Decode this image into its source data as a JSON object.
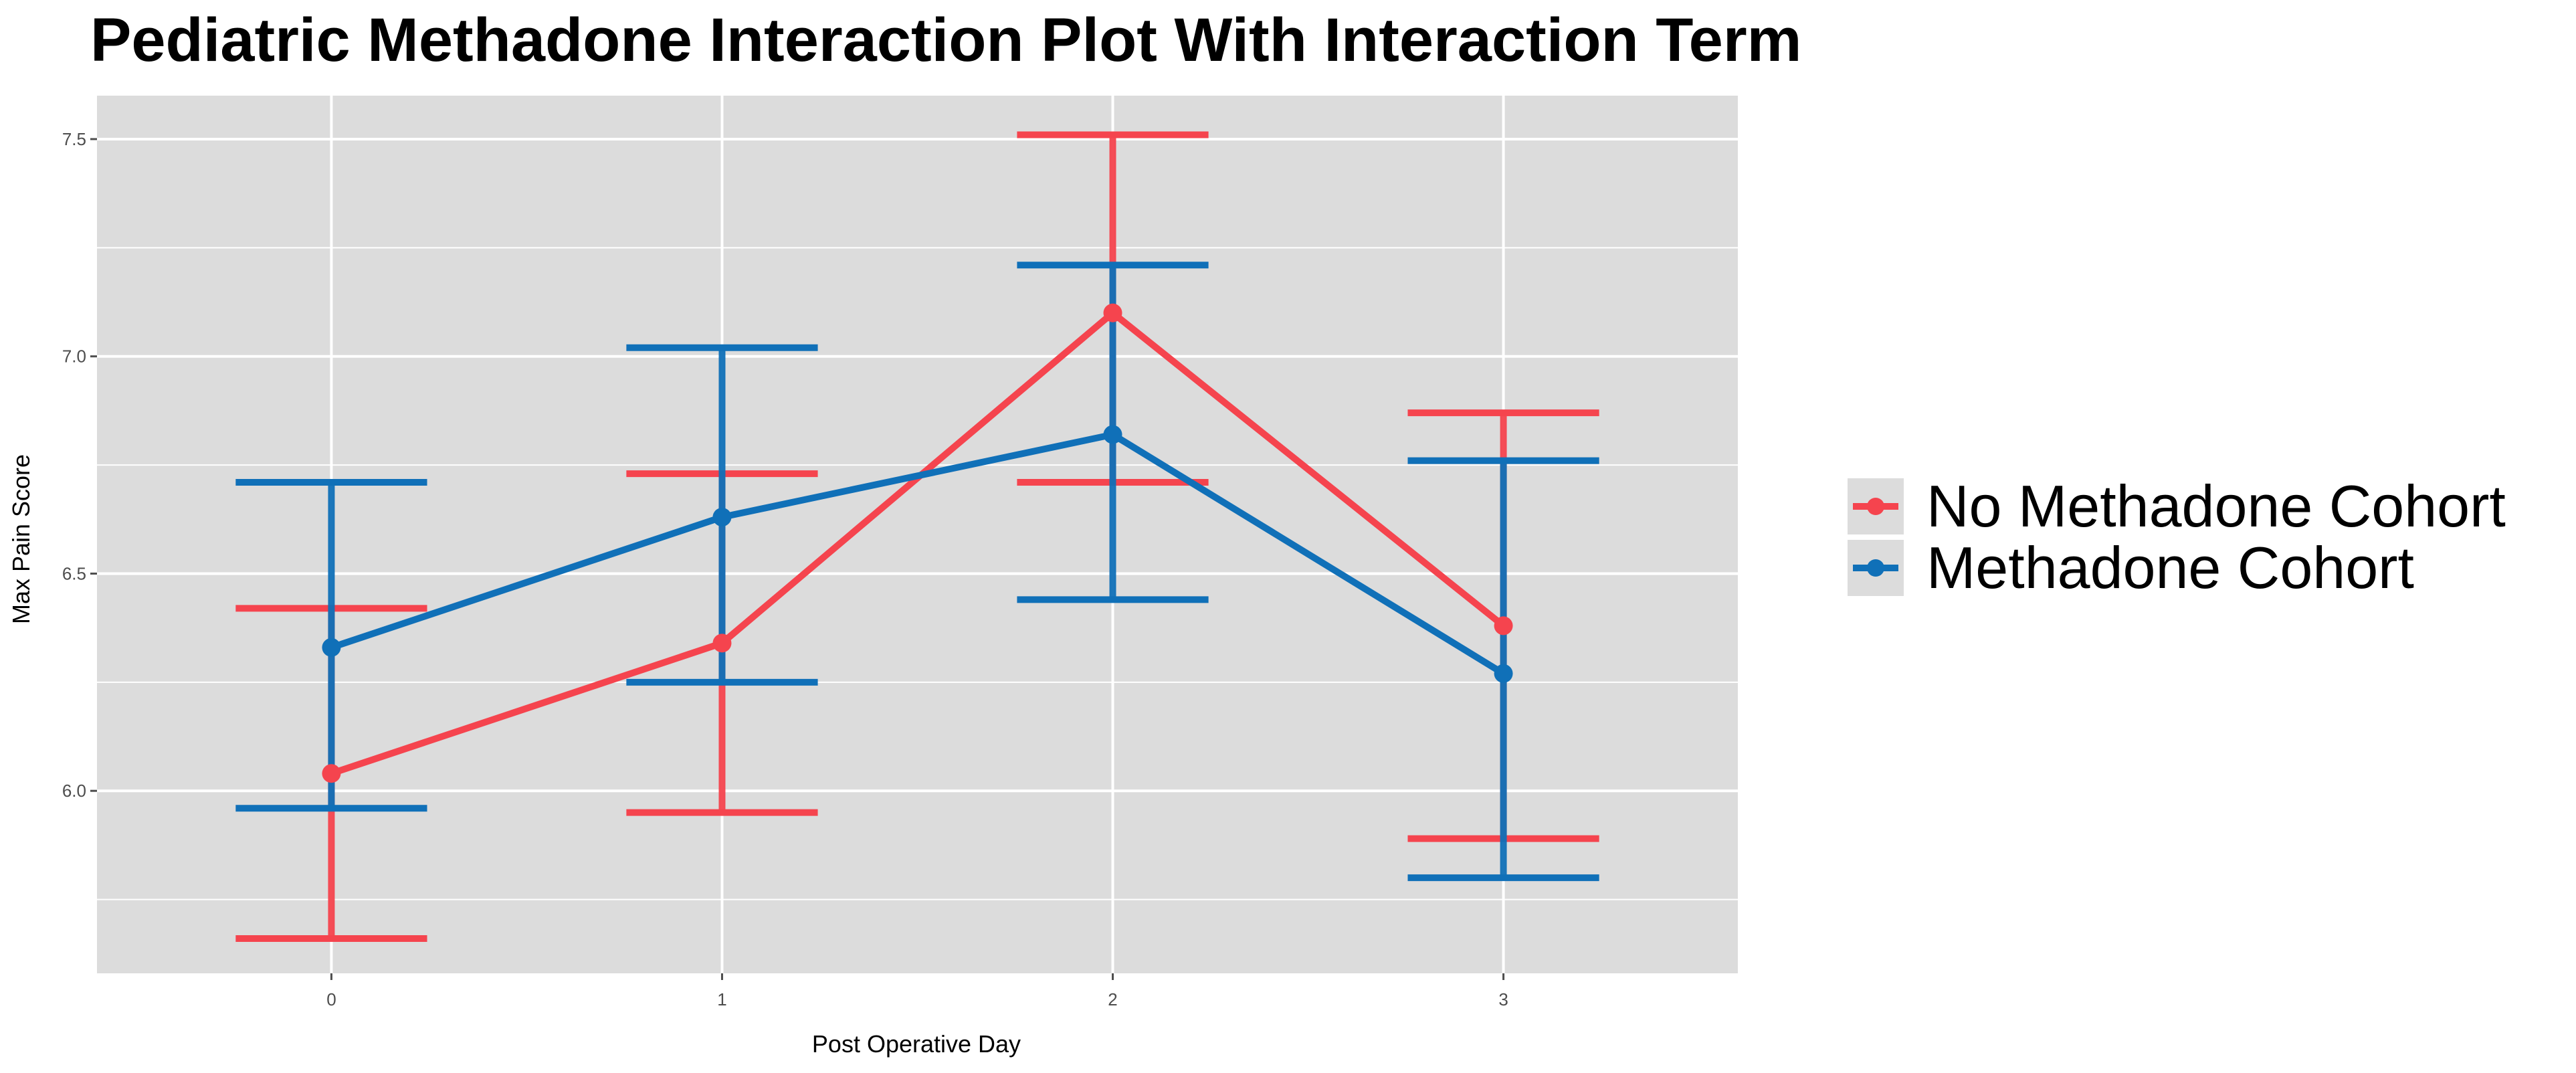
{
  "colors": {
    "panel_background": "#dcdcdc",
    "grid": "#ffffff",
    "no_methadone": "#f5444e",
    "methadone": "#1070b8",
    "overlap": "#0e5aa0"
  },
  "chart_data": {
    "type": "line",
    "title": "Pediatric Methadone Interaction Plot With Interaction Term",
    "xlabel": "Post Operative Day",
    "ylabel": "Max Pain Score",
    "x": [
      "0",
      "1",
      "2",
      "3"
    ],
    "xlim": [
      -0.6,
      3.6
    ],
    "ylim": [
      5.58,
      7.6
    ],
    "yticks": [
      6.0,
      6.5,
      7.0,
      7.5
    ],
    "ytick_labels": [
      "6.0",
      "6.5",
      "7.0",
      "7.5"
    ],
    "grid": true,
    "legend_position": "right",
    "series": [
      {
        "name": "No Methadone Cohort",
        "color": "#f5444e",
        "values": [
          6.04,
          6.34,
          7.1,
          6.38
        ],
        "lower": [
          5.66,
          5.95,
          6.71,
          5.89
        ],
        "upper": [
          6.42,
          6.73,
          7.51,
          6.87
        ]
      },
      {
        "name": "Methadone Cohort",
        "color": "#1070b8",
        "values": [
          6.33,
          6.63,
          6.82,
          6.27
        ],
        "lower": [
          5.96,
          6.25,
          6.44,
          5.8
        ],
        "upper": [
          6.71,
          7.02,
          7.21,
          6.76
        ]
      }
    ]
  }
}
